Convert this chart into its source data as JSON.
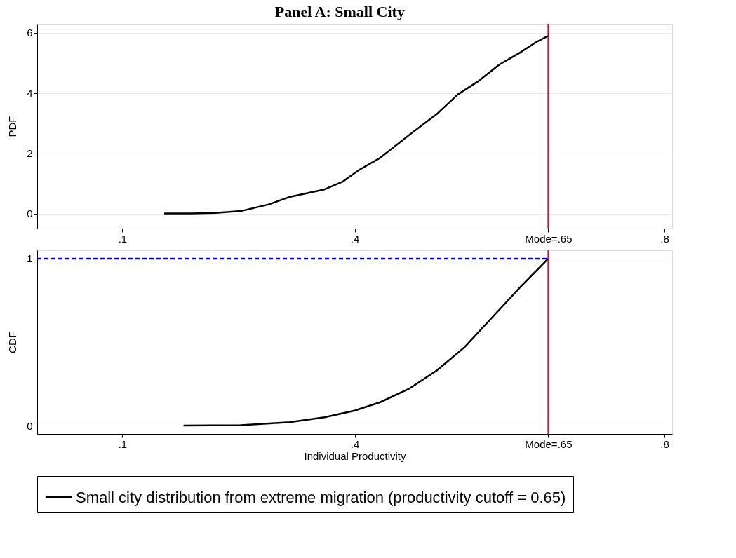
{
  "chart_data": [
    {
      "type": "line",
      "title": "Panel A: Small City",
      "ylabel": "PDF",
      "xlim": [
        -0.01,
        0.81
      ],
      "ylim": [
        -0.5,
        6.3
      ],
      "xticks": [
        {
          "value": 0.1,
          "label": ".1"
        },
        {
          "value": 0.4,
          "label": ".4"
        },
        {
          "value": 0.65,
          "label": "Mode=.65"
        },
        {
          "value": 0.8,
          "label": ".8"
        }
      ],
      "yticks": [
        0,
        2,
        4,
        6
      ],
      "grid": "y",
      "legend": false,
      "series": [
        {
          "color": "#000000",
          "x": [
            0.154,
            0.189,
            0.22,
            0.253,
            0.289,
            0.316,
            0.34,
            0.361,
            0.384,
            0.406,
            0.433,
            0.47,
            0.506,
            0.533,
            0.56,
            0.587,
            0.614,
            0.635,
            0.65
          ],
          "values": [
            0,
            0,
            0.02,
            0.08,
            0.3,
            0.55,
            0.68,
            0.8,
            1.05,
            1.45,
            1.85,
            2.6,
            3.3,
            3.95,
            4.4,
            4.95,
            5.35,
            5.7,
            5.9
          ]
        }
      ],
      "ref_lines": [
        {
          "axis": "x",
          "value": 0.65,
          "color": "#c8102e"
        }
      ]
    },
    {
      "type": "line",
      "ylabel": "CDF",
      "xlabel": "Individual Productivity",
      "xlim": [
        -0.01,
        0.81
      ],
      "ylim": [
        -0.05,
        1.05
      ],
      "xticks": [
        {
          "value": 0.1,
          "label": ".1"
        },
        {
          "value": 0.4,
          "label": ".4"
        },
        {
          "value": 0.65,
          "label": "Mode=.65"
        },
        {
          "value": 0.8,
          "label": ".8"
        }
      ],
      "yticks": [
        0,
        1
      ],
      "grid": "y",
      "legend": "bottom",
      "series": [
        {
          "name": "Small city distribution from extreme migration (productivity cutoff = 0.65)",
          "color": "#000000",
          "x": [
            0.179,
            0.253,
            0.316,
            0.361,
            0.4,
            0.433,
            0.47,
            0.506,
            0.542,
            0.578,
            0.614,
            0.65
          ],
          "values": [
            0,
            0.002,
            0.02,
            0.05,
            0.09,
            0.14,
            0.22,
            0.33,
            0.47,
            0.65,
            0.83,
            1.0
          ]
        },
        {
          "color": "#0000ee",
          "line_style": "dashed",
          "x": [
            -0.01,
            0.65
          ],
          "values": [
            1,
            1
          ]
        }
      ],
      "ref_lines": [
        {
          "axis": "x",
          "value": 0.65,
          "color": "#c8102e"
        }
      ]
    }
  ]
}
